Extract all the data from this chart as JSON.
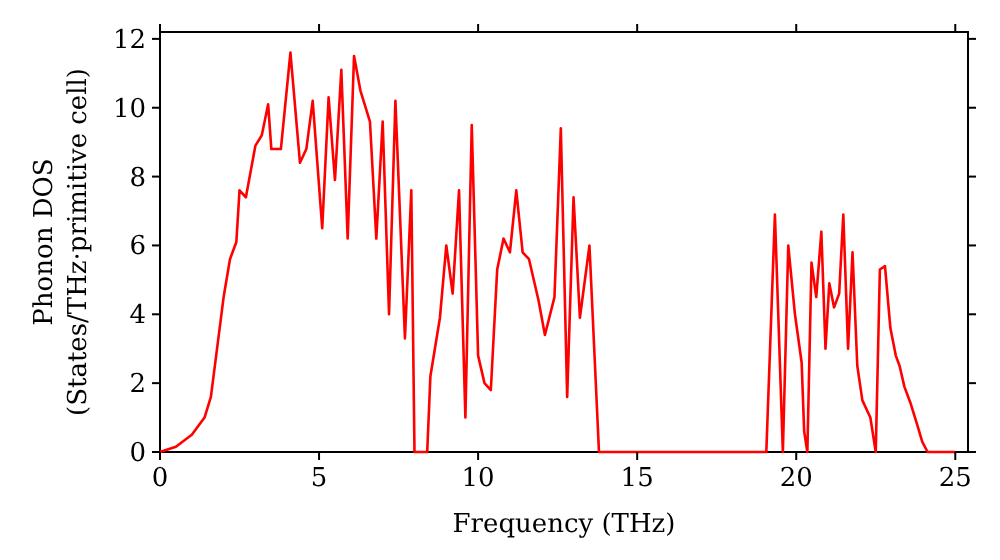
{
  "chart_data": {
    "type": "line",
    "xlabel": "Frequency (THz)",
    "ylabel": "Phonon DOS\n(States/THz·primitive cell)",
    "xlim": [
      0,
      25.4
    ],
    "ylim": [
      0,
      12.2
    ],
    "xticks": [
      0,
      5,
      10,
      15,
      20,
      25
    ],
    "yticks": [
      0,
      2,
      4,
      6,
      8,
      10,
      12
    ],
    "grid": false,
    "line_style": "solid",
    "marker": "none",
    "series": [
      {
        "color": "#ff0000",
        "x": [
          0,
          0.5,
          1,
          1.4,
          1.6,
          2.0,
          2.2,
          2.4,
          2.5,
          2.7,
          3.0,
          3.2,
          3.4,
          3.5,
          3.8,
          4.1,
          4.4,
          4.6,
          4.8,
          5.1,
          5.3,
          5.5,
          5.7,
          5.9,
          6.1,
          6.3,
          6.6,
          6.8,
          7.0,
          7.2,
          7.4,
          7.7,
          7.9,
          8.0,
          8.4,
          8.5,
          8.8,
          9.0,
          9.2,
          9.4,
          9.6,
          9.8,
          10.0,
          10.2,
          10.4,
          10.6,
          10.8,
          11.0,
          11.2,
          11.4,
          11.6,
          11.9,
          12.1,
          12.4,
          12.6,
          12.8,
          13.0,
          13.2,
          13.5,
          13.7,
          13.8,
          19.06,
          19.33,
          19.58,
          19.75,
          19.96,
          20.17,
          20.25,
          20.35,
          20.48,
          20.63,
          20.79,
          20.92,
          21.04,
          21.19,
          21.35,
          21.48,
          21.63,
          21.77,
          21.92,
          22.08,
          22.33,
          22.5,
          22.63,
          22.79,
          22.96,
          23.13,
          23.25,
          23.4,
          23.6,
          23.8,
          23.96,
          24.13,
          25.0
        ],
        "values": [
          0,
          0.15,
          0.5,
          1.0,
          1.6,
          4.5,
          5.6,
          6.1,
          7.6,
          7.4,
          8.9,
          9.2,
          10.1,
          8.8,
          8.8,
          11.6,
          8.4,
          8.8,
          10.2,
          6.5,
          10.3,
          7.9,
          11.1,
          6.2,
          11.5,
          10.5,
          9.6,
          6.2,
          9.6,
          4.0,
          10.2,
          3.3,
          7.6,
          0,
          0,
          2.2,
          3.9,
          6.0,
          4.6,
          7.6,
          1.0,
          9.5,
          2.8,
          2.0,
          1.8,
          5.3,
          6.2,
          5.8,
          7.6,
          5.8,
          5.6,
          4.4,
          3.4,
          4.5,
          9.4,
          1.6,
          7.4,
          3.9,
          6.0,
          2.0,
          0,
          0,
          6.9,
          0,
          6.0,
          4.0,
          2.6,
          0.6,
          0,
          5.5,
          4.5,
          6.4,
          3.0,
          4.9,
          4.2,
          4.6,
          6.9,
          3.0,
          5.8,
          2.5,
          1.5,
          1.0,
          0,
          5.3,
          5.4,
          3.6,
          2.8,
          2.5,
          1.9,
          1.4,
          0.8,
          0.3,
          0,
          0
        ]
      }
    ]
  }
}
